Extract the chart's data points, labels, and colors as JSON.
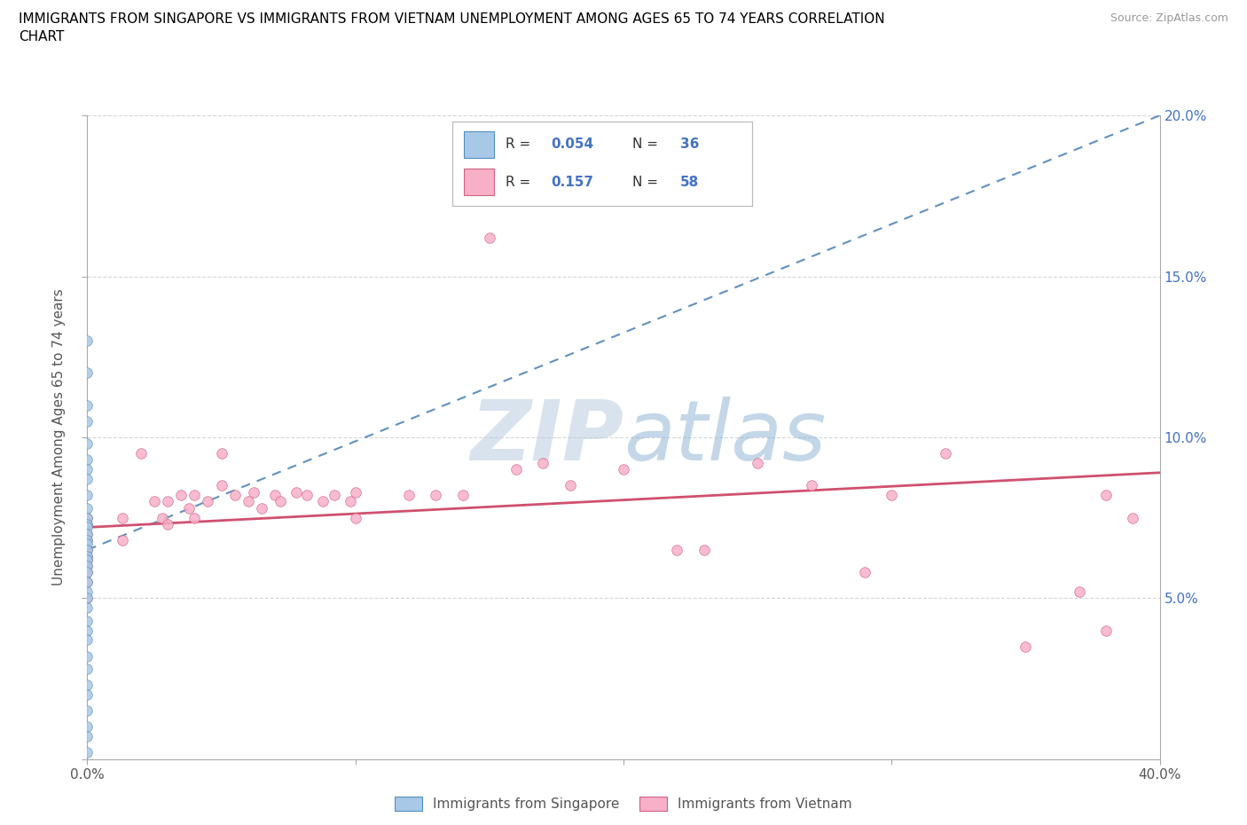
{
  "title_line1": "IMMIGRANTS FROM SINGAPORE VS IMMIGRANTS FROM VIETNAM UNEMPLOYMENT AMONG AGES 65 TO 74 YEARS CORRELATION",
  "title_line2": "CHART",
  "source_text": "Source: ZipAtlas.com",
  "ylabel": "Unemployment Among Ages 65 to 74 years",
  "xlim": [
    0.0,
    0.4
  ],
  "ylim": [
    0.0,
    0.2
  ],
  "xticks": [
    0.0,
    0.1,
    0.2,
    0.3,
    0.4
  ],
  "xticklabels": [
    "0.0%",
    "",
    "",
    "",
    "40.0%"
  ],
  "yticks": [
    0.0,
    0.05,
    0.1,
    0.15,
    0.2
  ],
  "left_yticklabels": [
    "",
    "",
    "",
    "",
    ""
  ],
  "right_yticklabels": [
    "",
    "5.0%",
    "10.0%",
    "15.0%",
    "20.0%"
  ],
  "singapore_color": "#a8c8e8",
  "singapore_edge_color": "#5090c0",
  "vietnam_color": "#f8b0c8",
  "vietnam_edge_color": "#d06080",
  "singapore_trendline_color": "#6090c0",
  "vietnam_trendline_color": "#d05070",
  "right_ytick_color": "#4472c4",
  "singapore_R": "0.054",
  "singapore_N": "36",
  "vietnam_R": "0.157",
  "vietnam_N": "58",
  "watermark": "ZIPatlas",
  "watermark_color": "#c8d8ea",
  "legend_label_singapore": "Immigrants from Singapore",
  "legend_label_vietnam": "Immigrants from Vietnam",
  "sg_trend_x0": 0.0,
  "sg_trend_y0": 0.065,
  "sg_trend_x1": 0.4,
  "sg_trend_y1": 0.2,
  "vn_trend_x0": 0.0,
  "vn_trend_y0": 0.072,
  "vn_trend_x1": 0.4,
  "vn_trend_y1": 0.089,
  "singapore_x": [
    0.0,
    0.0,
    0.0,
    0.0,
    0.0,
    0.0,
    0.0,
    0.0,
    0.0,
    0.0,
    0.0,
    0.0,
    0.0,
    0.0,
    0.0,
    0.0,
    0.0,
    0.0,
    0.0,
    0.0,
    0.0,
    0.0,
    0.0,
    0.0,
    0.0,
    0.0,
    0.0,
    0.0,
    0.0,
    0.0,
    0.0,
    0.0,
    0.0,
    0.0,
    0.0,
    0.0
  ],
  "singapore_y": [
    0.13,
    0.12,
    0.11,
    0.105,
    0.098,
    0.093,
    0.09,
    0.087,
    0.082,
    0.078,
    0.075,
    0.073,
    0.072,
    0.07,
    0.068,
    0.067,
    0.065,
    0.063,
    0.062,
    0.06,
    0.058,
    0.055,
    0.052,
    0.05,
    0.047,
    0.043,
    0.04,
    0.037,
    0.032,
    0.028,
    0.023,
    0.02,
    0.015,
    0.01,
    0.007,
    0.002
  ],
  "vietnam_x": [
    0.0,
    0.0,
    0.0,
    0.0,
    0.0,
    0.0,
    0.0,
    0.0,
    0.0,
    0.0,
    0.0,
    0.013,
    0.013,
    0.02,
    0.025,
    0.028,
    0.03,
    0.03,
    0.035,
    0.038,
    0.04,
    0.04,
    0.045,
    0.05,
    0.05,
    0.055,
    0.06,
    0.062,
    0.065,
    0.07,
    0.072,
    0.078,
    0.082,
    0.088,
    0.092,
    0.098,
    0.1,
    0.1,
    0.12,
    0.13,
    0.14,
    0.15,
    0.16,
    0.17,
    0.18,
    0.2,
    0.22,
    0.23,
    0.25,
    0.27,
    0.29,
    0.3,
    0.32,
    0.35,
    0.37,
    0.38,
    0.38,
    0.39
  ],
  "vietnam_y": [
    0.075,
    0.073,
    0.07,
    0.068,
    0.065,
    0.063,
    0.062,
    0.06,
    0.058,
    0.055,
    0.05,
    0.075,
    0.068,
    0.095,
    0.08,
    0.075,
    0.08,
    0.073,
    0.082,
    0.078,
    0.082,
    0.075,
    0.08,
    0.095,
    0.085,
    0.082,
    0.08,
    0.083,
    0.078,
    0.082,
    0.08,
    0.083,
    0.082,
    0.08,
    0.082,
    0.08,
    0.083,
    0.075,
    0.082,
    0.082,
    0.082,
    0.162,
    0.09,
    0.092,
    0.085,
    0.09,
    0.065,
    0.065,
    0.092,
    0.085,
    0.058,
    0.082,
    0.095,
    0.035,
    0.052,
    0.04,
    0.082,
    0.075
  ]
}
